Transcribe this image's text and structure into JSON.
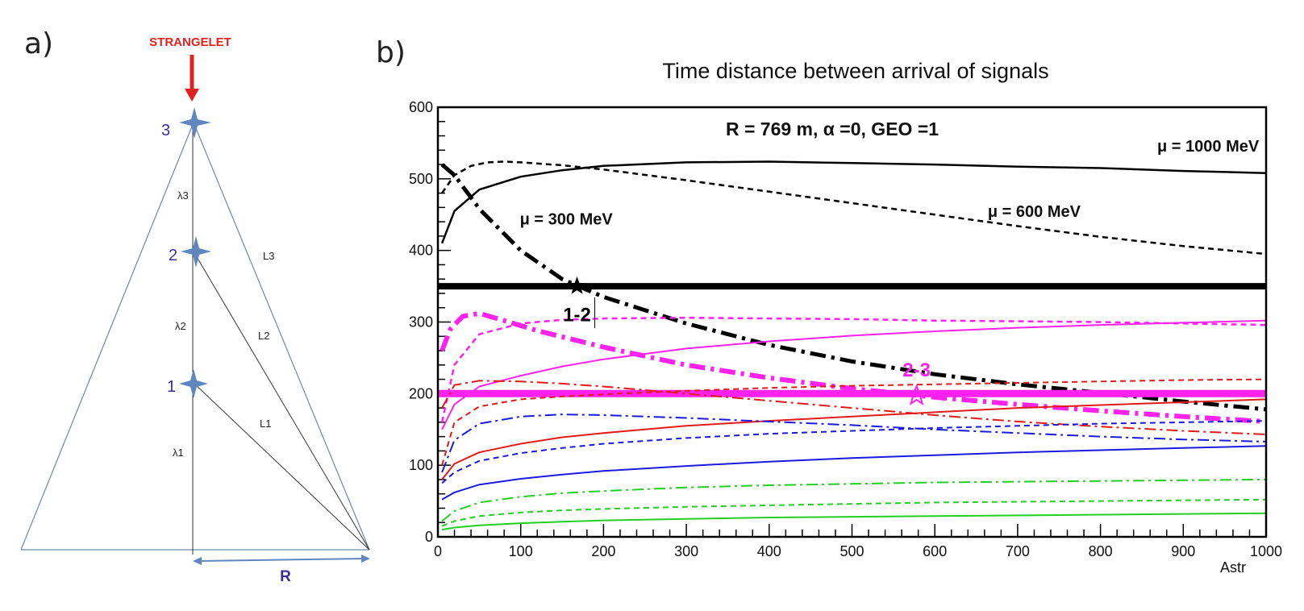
{
  "panel_a": {
    "label": "a)",
    "top_label": "STRANGELET",
    "points": [
      "3",
      "2",
      "1"
    ],
    "lambda_labels": [
      "λ3",
      "λ2",
      "λ1"
    ],
    "l_labels": [
      "L3",
      "L2",
      "L1"
    ],
    "r_label": "R",
    "colors": {
      "arrow": "#e32020",
      "star": "#5f86bf",
      "frame": "#6f86a6",
      "number": "#3d2d9a"
    }
  },
  "panel_b": {
    "label": "b)"
  },
  "chart_data": {
    "type": "line",
    "title": "Time distance between arrival of signals",
    "annotation_main": "R = 769 m,  α =0, GEO =1",
    "xlabel": "Astr",
    "ylabel": "",
    "xlim": [
      0,
      1000
    ],
    "ylim": [
      0,
      600
    ],
    "x_ticks": [
      0,
      100,
      200,
      300,
      400,
      500,
      600,
      700,
      800,
      900,
      1000
    ],
    "y_ticks": [
      0,
      100,
      200,
      300,
      400,
      500,
      600
    ],
    "grid": false,
    "curve_labels": [
      {
        "text": "μ = 1000 MeV",
        "x": 930,
        "y": 538
      },
      {
        "text": "μ = 600 MeV",
        "x": 720,
        "y": 447
      },
      {
        "text": "μ = 300 MeV",
        "x": 155,
        "y": 436
      }
    ],
    "markers": [
      {
        "text": "1-2",
        "x": 168,
        "y": 350,
        "color": "#000000",
        "label_x": 168,
        "label_y": 310
      },
      {
        "text": "2-3",
        "x": 578,
        "y": 197,
        "color": "#ff22ee",
        "label_x": 578,
        "label_y": 233
      }
    ],
    "series": [
      {
        "name": "black solid (μ = 1000 MeV)",
        "color": "#000000",
        "style": "solid",
        "width": 2.5,
        "x": [
          5,
          20,
          50,
          100,
          150,
          200,
          300,
          400,
          500,
          600,
          700,
          800,
          900,
          1000
        ],
        "values": [
          410,
          455,
          485,
          503,
          512,
          518,
          523,
          524,
          522,
          520,
          517,
          515,
          511,
          508
        ]
      },
      {
        "name": "black dashed (μ = 600 MeV)",
        "color": "#000000",
        "style": "dashed",
        "width": 2.5,
        "x": [
          5,
          20,
          40,
          60,
          80,
          100,
          150,
          200,
          300,
          400,
          500,
          600,
          700,
          800,
          900,
          1000
        ],
        "values": [
          480,
          505,
          518,
          523,
          524,
          523,
          519,
          513,
          498,
          482,
          466,
          450,
          434,
          419,
          406,
          395
        ]
      },
      {
        "name": "black dash-dot (μ = 300 MeV)",
        "color": "#000000",
        "style": "dashdot",
        "width": 5,
        "x": [
          5,
          20,
          50,
          100,
          150,
          200,
          300,
          400,
          500,
          600,
          700,
          800,
          900,
          1000
        ],
        "values": [
          520,
          505,
          458,
          400,
          360,
          335,
          298,
          268,
          245,
          227,
          213,
          201,
          189,
          178
        ]
      },
      {
        "name": "black thick horizontal",
        "color": "#000000",
        "style": "solid",
        "width": 8,
        "x": [
          0,
          1000
        ],
        "values": [
          350,
          350
        ]
      },
      {
        "name": "magenta dash-dot thick",
        "color": "#ff22ee",
        "style": "dashdot",
        "width": 6,
        "x": [
          5,
          15,
          30,
          50,
          80,
          120,
          200,
          300,
          400,
          500,
          600,
          700,
          800,
          900,
          1000
        ],
        "values": [
          260,
          290,
          308,
          312,
          302,
          288,
          265,
          240,
          222,
          207,
          195,
          185,
          176,
          168,
          161
        ]
      },
      {
        "name": "magenta dashed",
        "color": "#ff22ee",
        "style": "dashed",
        "width": 2.5,
        "x": [
          5,
          20,
          50,
          100,
          150,
          200,
          300,
          400,
          500,
          600,
          700,
          800,
          900,
          1000
        ],
        "values": [
          160,
          240,
          283,
          298,
          303,
          305,
          306,
          305,
          304,
          302,
          301,
          300,
          298,
          296
        ]
      },
      {
        "name": "magenta solid",
        "color": "#ff22ee",
        "style": "solid",
        "width": 2,
        "x": [
          5,
          20,
          50,
          100,
          150,
          200,
          300,
          400,
          500,
          600,
          700,
          800,
          900,
          1000
        ],
        "values": [
          150,
          185,
          210,
          225,
          238,
          248,
          263,
          273,
          281,
          287,
          292,
          296,
          299,
          302
        ]
      },
      {
        "name": "magenta thick horizontal",
        "color": "#ff22ee",
        "style": "solid",
        "width": 9,
        "x": [
          0,
          1000
        ],
        "values": [
          200,
          200
        ]
      },
      {
        "name": "red dash-dot",
        "color": "#e31a1a",
        "style": "dashdot",
        "width": 2,
        "x": [
          5,
          20,
          50,
          100,
          150,
          200,
          300,
          400,
          500,
          600,
          700,
          800,
          900,
          1000
        ],
        "values": [
          180,
          212,
          218,
          217,
          214,
          210,
          200,
          190,
          180,
          170,
          161,
          154,
          148,
          143
        ]
      },
      {
        "name": "red dashed",
        "color": "#e31a1a",
        "style": "dashed",
        "width": 2,
        "x": [
          5,
          20,
          50,
          100,
          150,
          200,
          300,
          400,
          500,
          600,
          700,
          800,
          900,
          1000
        ],
        "values": [
          100,
          160,
          182,
          192,
          196,
          199,
          204,
          208,
          211,
          213,
          215,
          217,
          219,
          220
        ]
      },
      {
        "name": "red solid",
        "color": "#e31a1a",
        "style": "solid",
        "width": 2,
        "x": [
          5,
          20,
          50,
          100,
          150,
          200,
          300,
          400,
          500,
          600,
          700,
          800,
          900,
          1000
        ],
        "values": [
          80,
          102,
          118,
          130,
          139,
          145,
          155,
          162,
          168,
          174,
          180,
          184,
          188,
          192
        ]
      },
      {
        "name": "blue dash-dot",
        "color": "#1a1ae0",
        "style": "dashdot",
        "width": 2,
        "x": [
          5,
          20,
          50,
          100,
          150,
          200,
          300,
          400,
          500,
          600,
          700,
          800,
          900,
          1000
        ],
        "values": [
          90,
          135,
          158,
          168,
          171,
          170,
          166,
          161,
          156,
          150,
          145,
          140,
          136,
          133
        ]
      },
      {
        "name": "blue dashed",
        "color": "#1a1ae0",
        "style": "dashed",
        "width": 2,
        "x": [
          5,
          20,
          50,
          100,
          150,
          200,
          300,
          400,
          500,
          600,
          700,
          800,
          900,
          1000
        ],
        "values": [
          75,
          90,
          106,
          117,
          124,
          130,
          138,
          144,
          148,
          152,
          155,
          158,
          160,
          162
        ]
      },
      {
        "name": "blue solid",
        "color": "#1a1ae0",
        "style": "solid",
        "width": 2,
        "x": [
          5,
          20,
          50,
          100,
          150,
          200,
          300,
          400,
          500,
          600,
          700,
          800,
          900,
          1000
        ],
        "values": [
          52,
          62,
          73,
          81,
          87,
          92,
          99,
          105,
          110,
          114,
          118,
          121,
          124,
          127
        ]
      },
      {
        "name": "green dash-dot",
        "color": "#22d022",
        "style": "dashdot",
        "width": 2,
        "x": [
          5,
          20,
          50,
          100,
          150,
          200,
          300,
          400,
          500,
          600,
          700,
          800,
          900,
          1000
        ],
        "values": [
          22,
          36,
          48,
          56,
          61,
          64,
          69,
          72,
          74,
          76,
          77,
          78,
          79,
          80
        ]
      },
      {
        "name": "green dashed",
        "color": "#22d022",
        "style": "dashed",
        "width": 2,
        "x": [
          5,
          20,
          50,
          100,
          150,
          200,
          300,
          400,
          500,
          600,
          700,
          800,
          900,
          1000
        ],
        "values": [
          15,
          22,
          29,
          34,
          37,
          39,
          42,
          44,
          46,
          48,
          49,
          50,
          51,
          52
        ]
      },
      {
        "name": "green solid",
        "color": "#22d022",
        "style": "solid",
        "width": 2,
        "x": [
          5,
          20,
          50,
          100,
          150,
          200,
          300,
          400,
          500,
          600,
          700,
          800,
          900,
          1000
        ],
        "values": [
          10,
          13,
          16,
          19,
          21,
          23,
          25,
          27,
          28,
          29,
          30,
          31,
          32,
          33
        ]
      }
    ]
  }
}
